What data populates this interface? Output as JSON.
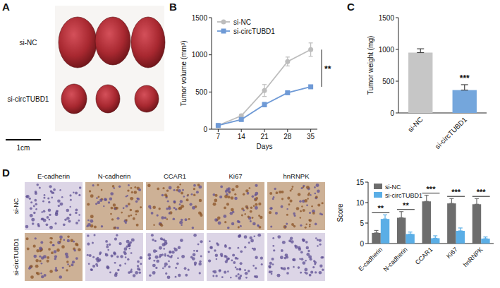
{
  "figure": {
    "panel_letters": [
      "A",
      "B",
      "C",
      "D"
    ],
    "photo": {
      "groups": [
        "si-NC",
        "si-circTUBD1"
      ],
      "scale_bar": "1cm"
    },
    "ihc": {
      "markers": [
        "E-cadherin",
        "N-cadherin",
        "CCAR1",
        "Ki67",
        "hnRNPK"
      ],
      "groups": [
        "si-NC",
        "si-circTUBD1"
      ]
    }
  },
  "chart_data": [
    {
      "type": "line",
      "xlabel": "Days",
      "ylabel": "Tumor volume (mm³)",
      "x": [
        7,
        14,
        21,
        28,
        35
      ],
      "xlim": [
        5,
        37
      ],
      "xticks": [
        7,
        14,
        21,
        28,
        35
      ],
      "ylim": [
        0,
        1500
      ],
      "yticks": [
        0,
        500,
        1000,
        1500
      ],
      "series": [
        {
          "name": "si-NC",
          "color": "#bdbdbd",
          "marker": "circle",
          "values": [
            50,
            180,
            520,
            910,
            1070
          ],
          "errors": [
            0,
            20,
            80,
            60,
            90
          ]
        },
        {
          "name": "si-circTUBD1",
          "color": "#6f9ad6",
          "marker": "square",
          "values": [
            50,
            130,
            330,
            490,
            570
          ],
          "errors": [
            0,
            15,
            30,
            20,
            20
          ]
        }
      ],
      "legend": "upper left",
      "annotation": "**"
    },
    {
      "type": "bar",
      "ylabel": "Tumor weight (mg)",
      "categories": [
        "si-NC",
        "si-circTUBD1"
      ],
      "values": [
        950,
        360
      ],
      "errors": [
        60,
        85
      ],
      "colors": [
        "#c6c6c6",
        "#74a6dc"
      ],
      "ylim": [
        0,
        1500
      ],
      "yticks": [
        0,
        500,
        1000,
        1500
      ],
      "annotation": "***"
    },
    {
      "type": "bar",
      "ylabel": "Score",
      "categories": [
        "E-cadherin",
        "N-cadherin",
        "CCAR1",
        "Ki67",
        "hnRNPK"
      ],
      "series": [
        {
          "name": "si-NC",
          "color": "#6d6d6d",
          "values": [
            2.6,
            6.3,
            10.3,
            9.8,
            9.6
          ],
          "errors": [
            0.6,
            1.5,
            1.5,
            1.2,
            1.4
          ]
        },
        {
          "name": "si-circTUBD1",
          "color": "#5aaee6",
          "values": [
            6.0,
            2.3,
            1.3,
            3.1,
            1.2
          ],
          "errors": [
            1.0,
            0.5,
            0.6,
            0.7,
            0.4
          ]
        }
      ],
      "ylim": [
        0,
        15
      ],
      "yticks": [
        0,
        5,
        10,
        15
      ],
      "legend": "upper left",
      "annotations": [
        "**",
        "**",
        "***",
        "***",
        "***"
      ]
    }
  ]
}
